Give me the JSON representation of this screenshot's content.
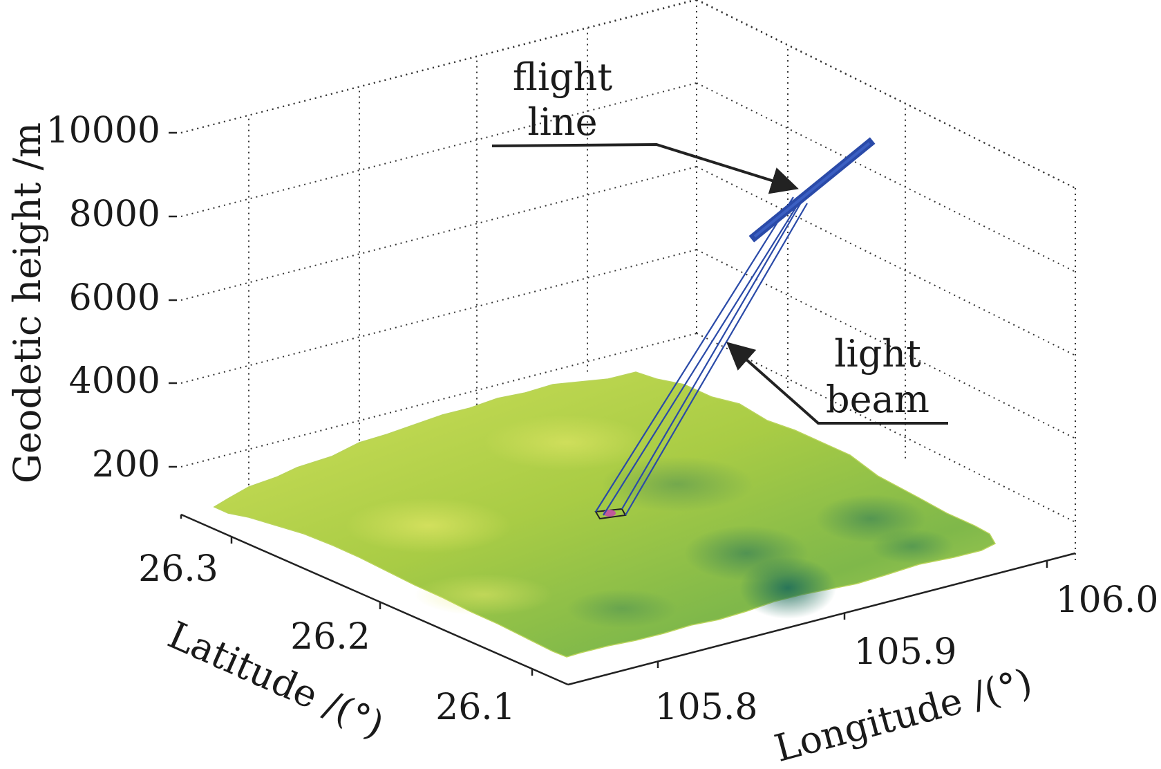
{
  "chart_data": {
    "type": "surface3d",
    "zlabel": "Geodetic height /m",
    "xlabel": "Longitude /(°)",
    "ylabel": "Latitude /(°)",
    "z_ticks": [
      "200",
      "4000",
      "6000",
      "8000",
      "10000"
    ],
    "x_ticks": [
      "105.8",
      "105.9",
      "106.0"
    ],
    "y_ticks": [
      "26.1",
      "26.2",
      "26.3"
    ],
    "grid": true,
    "annotations": [
      {
        "text_lines": [
          "flight",
          "line"
        ],
        "target": "flight-line"
      },
      {
        "text_lines": [
          "light",
          "beam"
        ],
        "target": "light-beam"
      }
    ],
    "colors": {
      "terrain_light": "#d8e25a",
      "terrain_mid": "#9cc63e",
      "terrain_dark": "#3e8f55",
      "flight_line": "#2a4aa8",
      "beam": "#2a4aa8",
      "footprint": "#c05a9a",
      "grid": "#333333",
      "axis": "#222222"
    }
  }
}
